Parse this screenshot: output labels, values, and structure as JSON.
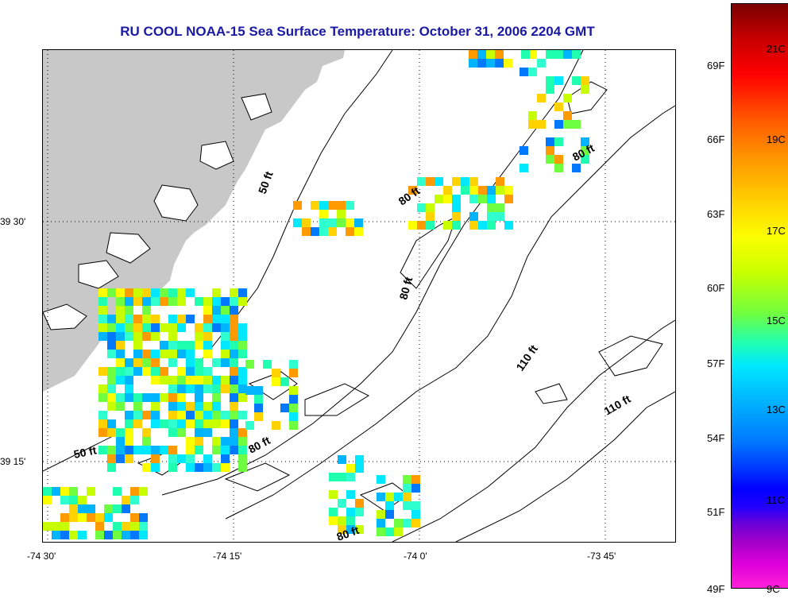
{
  "title": "RU COOL  NOAA-15  Sea Surface Temperature:  October 31, 2006 2204 GMT",
  "x_axis_labels": [
    "-74 30'",
    "-74 15'",
    "-74 0'",
    "-73 45'"
  ],
  "y_axis_labels": [
    "39 30'",
    "39 15'"
  ],
  "colorbar": {
    "fahrenheit_labels": [
      "69F",
      "66F",
      "63F",
      "60F",
      "57F",
      "54F",
      "51F",
      "49F"
    ],
    "celsius_labels": [
      "21C",
      "19C",
      "17C",
      "15C",
      "13C",
      "11C",
      "9C"
    ],
    "colors": [
      "#7a0000",
      "#ff0000",
      "#ff9b00",
      "#fbff00",
      "#70ff40",
      "#00e8ff",
      "#0078ff",
      "#0000ff",
      "#a000c8",
      "#ff20d8"
    ]
  },
  "contour_labels": [
    {
      "text": "50 ft",
      "name": "contour-label-50ft-north"
    },
    {
      "text": "50 ft",
      "name": "contour-label-50ft-south"
    },
    {
      "text": "80 ft",
      "name": "contour-label-80ft-a"
    },
    {
      "text": "80 ft",
      "name": "contour-label-80ft-b"
    },
    {
      "text": "80 ft",
      "name": "contour-label-80ft-c"
    },
    {
      "text": "80 ft",
      "name": "contour-label-80ft-d"
    },
    {
      "text": "80 ft",
      "name": "contour-label-80ft-e"
    },
    {
      "text": "110 ft",
      "name": "contour-label-110ft-a"
    },
    {
      "text": "110 ft",
      "name": "contour-label-110ft-b"
    }
  ],
  "land_color": "#c8c8c8",
  "title_color": "#1a1aa6"
}
